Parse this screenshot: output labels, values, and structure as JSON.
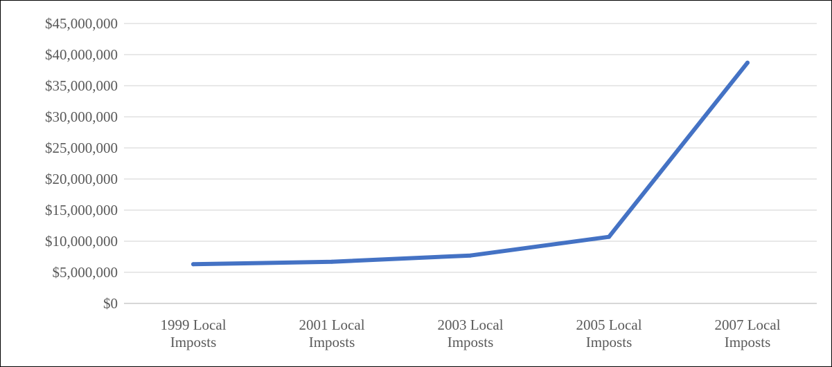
{
  "chart_data": {
    "type": "line",
    "title": "",
    "xlabel": "",
    "ylabel": "",
    "categories": [
      [
        "1999 Local",
        "Imposts"
      ],
      [
        "2001 Local",
        "Imposts"
      ],
      [
        "2003 Local",
        "Imposts"
      ],
      [
        "2005 Local",
        "Imposts"
      ],
      [
        "2007 Local",
        "Imposts"
      ]
    ],
    "series": [
      {
        "values": [
          6300000,
          6700000,
          7700000,
          10700000,
          38700000
        ],
        "color": "#4472c4"
      }
    ],
    "ylim": [
      0,
      45000000
    ],
    "ytick_values": [
      0,
      5000000,
      10000000,
      15000000,
      20000000,
      25000000,
      30000000,
      35000000,
      40000000,
      45000000
    ],
    "ytick_labels": [
      "$0",
      "$5,000,000",
      "$10,000,000",
      "$15,000,000",
      "$20,000,000",
      "$25,000,000",
      "$30,000,000",
      "$35,000,000",
      "$40,000,000",
      "$45,000,000"
    ],
    "grid": true,
    "legend": "none"
  }
}
